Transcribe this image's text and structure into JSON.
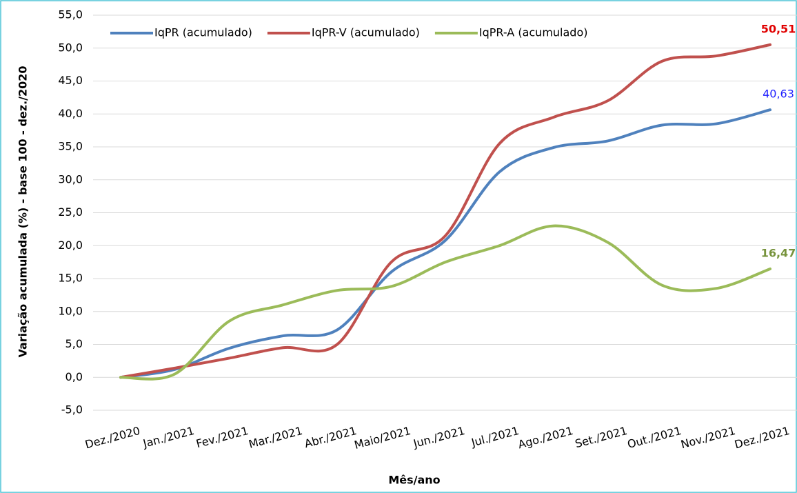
{
  "chart_data": {
    "type": "line",
    "y_label": "Variação acumulada (%) - base 100 - dez./2020",
    "x_label": "Mês/ano",
    "categories": [
      "Dez./2020",
      "Jan./2021",
      "Fev./2021",
      "Mar./2021",
      "Abr./2021",
      "Maio/2021",
      "Jun./2021",
      "Jul./2021",
      "Ago./2021",
      "Set./2021",
      "Out./2021",
      "Nov./2021",
      "Dez./2021"
    ],
    "series": [
      {
        "name": "IqPR (acumulado)",
        "color": "#4f81bd",
        "label_color": "#1f1fff",
        "label_bold": false,
        "values": [
          0,
          1.2,
          4.4,
          6.3,
          7.2,
          16.0,
          20.8,
          31.2,
          34.9,
          35.9,
          38.3,
          38.5,
          40.63
        ],
        "value_labels": [
          null,
          null,
          null,
          null,
          null,
          null,
          null,
          null,
          null,
          null,
          null,
          null,
          "40,63"
        ]
      },
      {
        "name": "IqPR-V  (acumulado)",
        "color": "#c0504d",
        "label_color": "#e00000",
        "label_bold": true,
        "values": [
          0,
          1.4,
          2.9,
          4.5,
          5.0,
          17.5,
          21.5,
          35.5,
          39.5,
          42.0,
          48.0,
          48.8,
          50.51
        ],
        "value_labels": [
          null,
          null,
          null,
          null,
          null,
          null,
          null,
          null,
          null,
          null,
          null,
          null,
          "50,51"
        ]
      },
      {
        "name": "IqPR-A  (acumulado)",
        "color": "#9bbb59",
        "label_color": "#77933c",
        "label_bold": true,
        "values": [
          0,
          0.5,
          8.5,
          11.0,
          13.2,
          13.8,
          17.5,
          20.0,
          23.0,
          20.5,
          14.0,
          13.5,
          16.47
        ],
        "value_labels": [
          null,
          null,
          null,
          null,
          null,
          null,
          null,
          null,
          null,
          null,
          null,
          null,
          "16,47"
        ]
      }
    ],
    "ylim": [
      -5,
      55
    ],
    "yticks": [
      {
        "value": -5,
        "label": "-5,0"
      },
      {
        "value": 0,
        "label": "0,0"
      },
      {
        "value": 5,
        "label": "5,0"
      },
      {
        "value": 10,
        "label": "10,0"
      },
      {
        "value": 15,
        "label": "15,0"
      },
      {
        "value": 20,
        "label": "20,0"
      },
      {
        "value": 25,
        "label": "25,0"
      },
      {
        "value": 30,
        "label": "30,0"
      },
      {
        "value": 35,
        "label": "35,0"
      },
      {
        "value": 40,
        "label": "40,0"
      },
      {
        "value": 45,
        "label": "45,0"
      },
      {
        "value": 50,
        "label": "50,0"
      },
      {
        "value": 55,
        "label": "55,0"
      }
    ],
    "grid": true,
    "smooth": true,
    "legend": "top-left"
  }
}
